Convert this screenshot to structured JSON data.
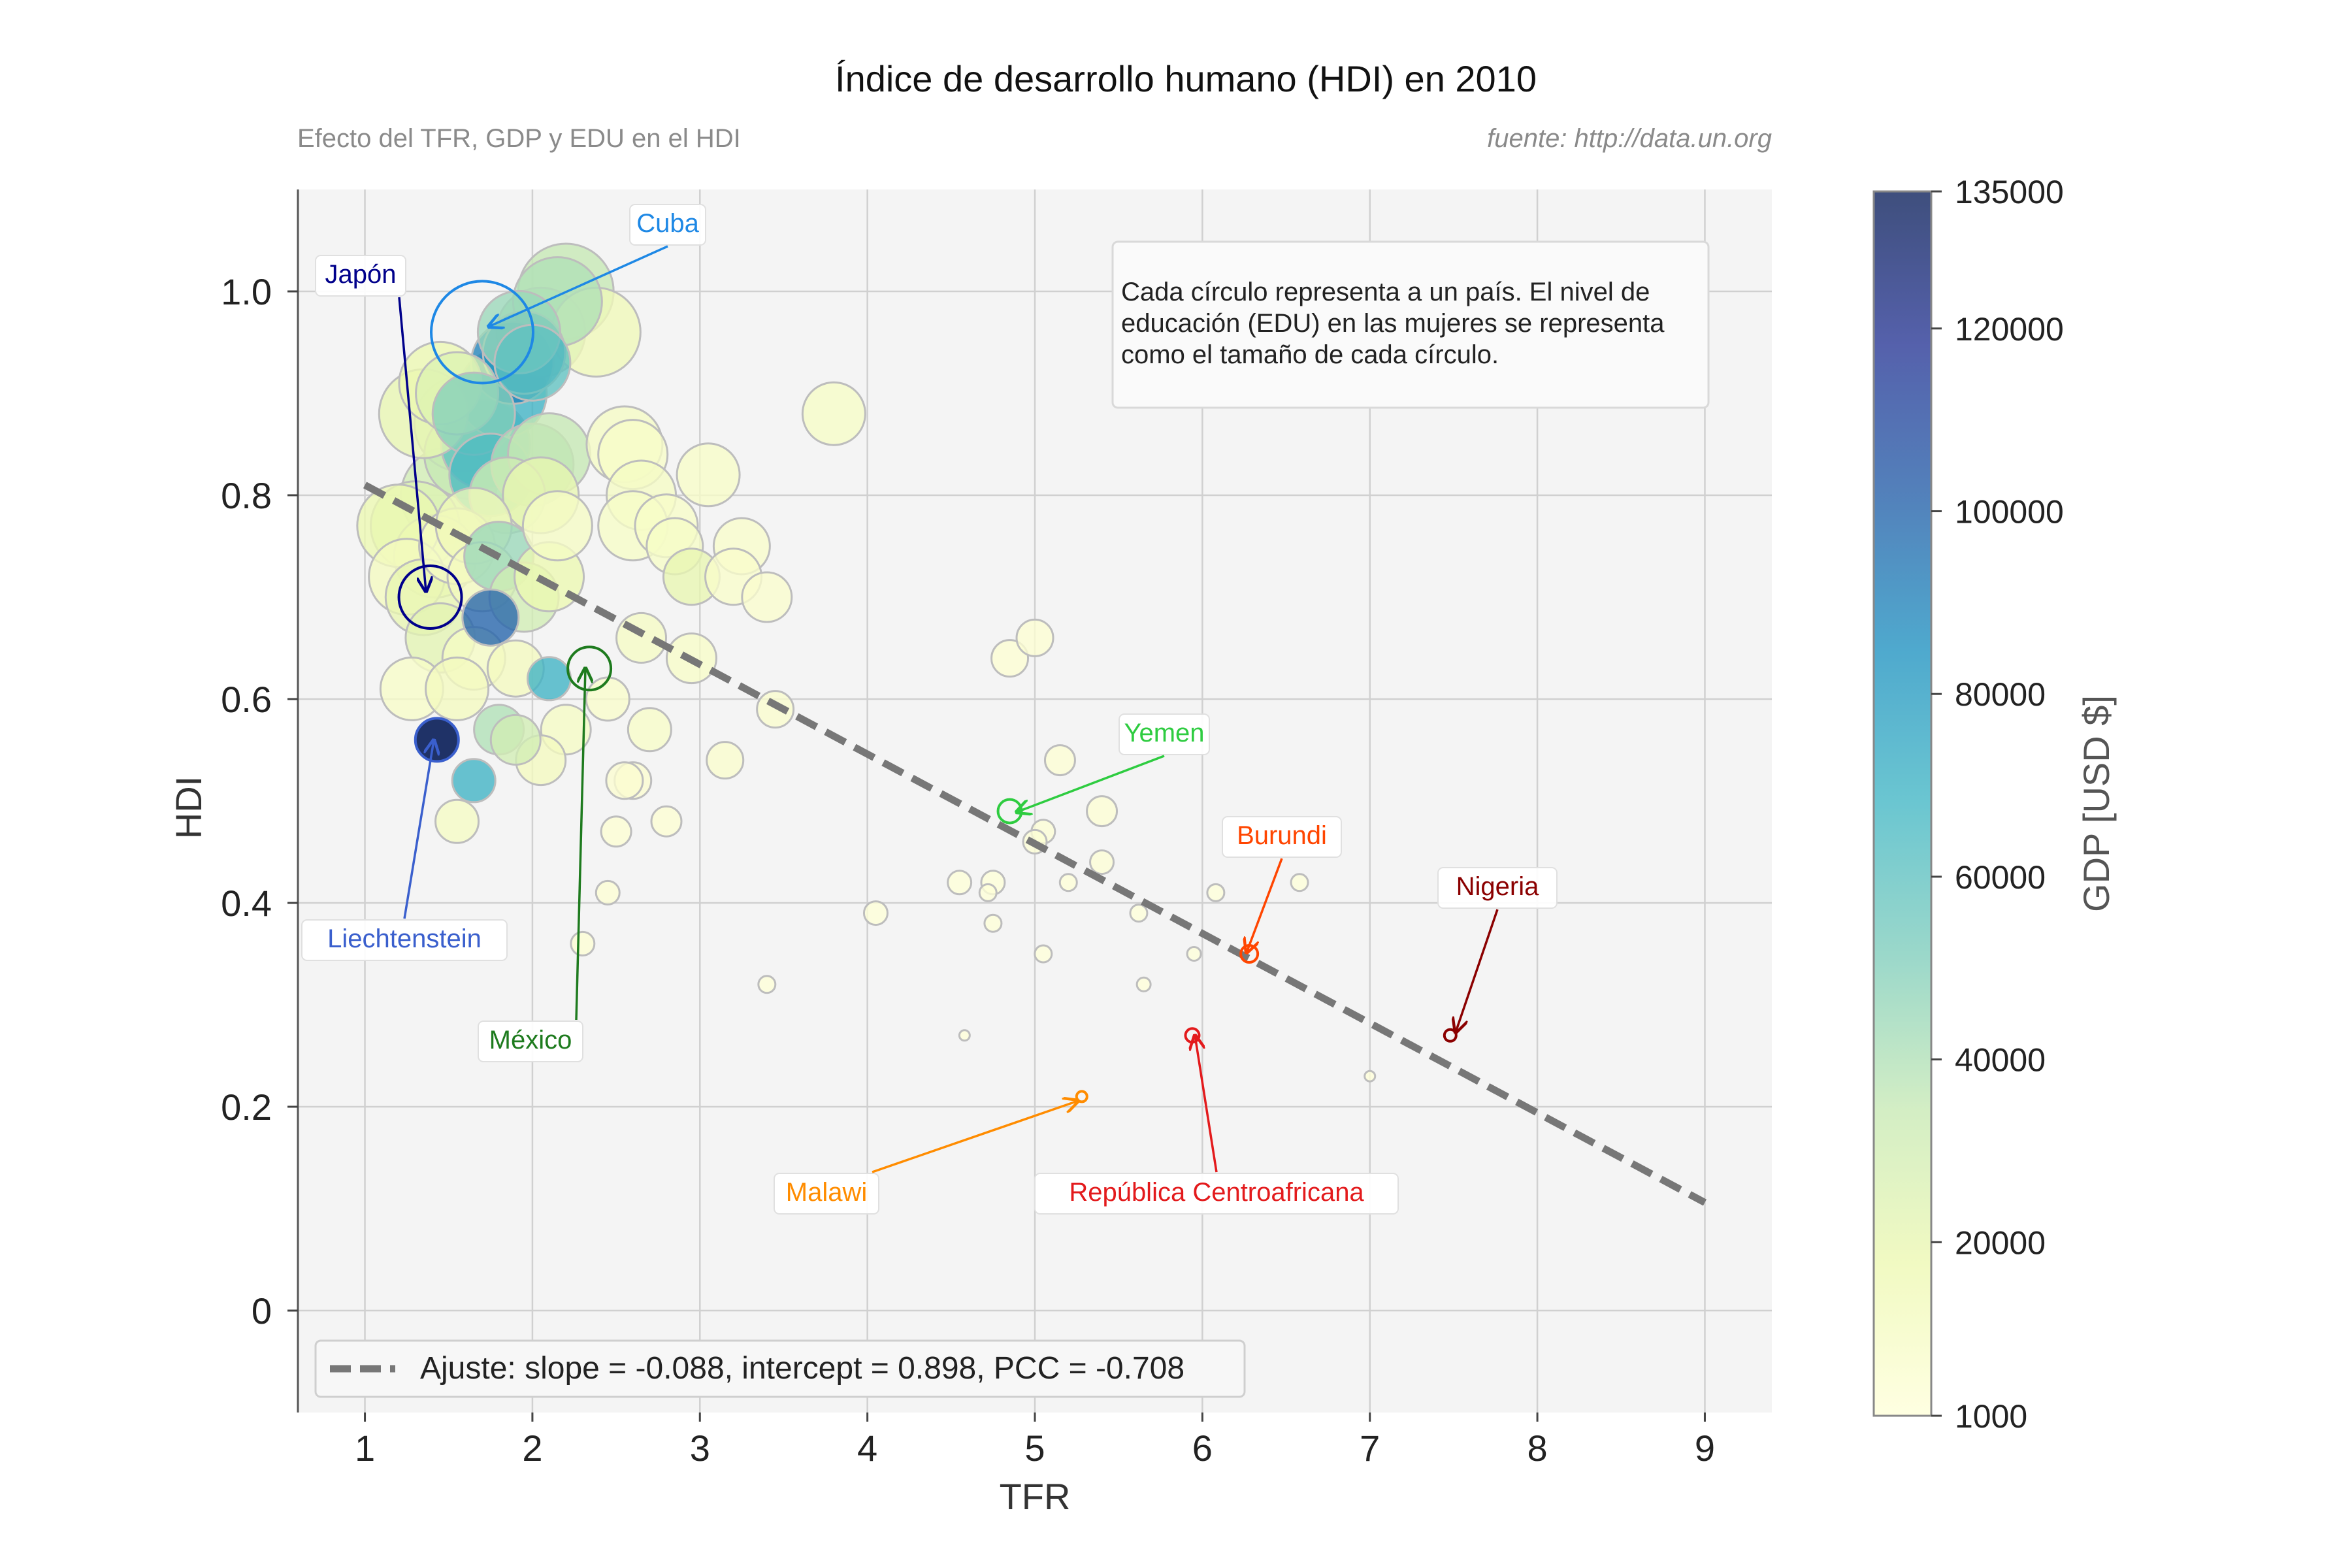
{
  "chart_data": {
    "type": "scatter",
    "title": "Índice de desarrollo humano (HDI) en 2010",
    "subtitle_left": "Efecto del TFR, GDP y EDU en el HDI",
    "subtitle_right": "fuente: http://data.un.org",
    "xlabel": "TFR",
    "ylabel": "HDI",
    "xlim": [
      0.6,
      9.4
    ],
    "ylim": [
      -0.1,
      1.1
    ],
    "xticks": [
      1,
      2,
      3,
      4,
      5,
      6,
      7,
      8,
      9
    ],
    "xtick_labels": [
      "1",
      "2",
      "3",
      "4",
      "5",
      "6",
      "7",
      "8",
      "9"
    ],
    "yticks": [
      0,
      0.2,
      0.4,
      0.6,
      0.8,
      1.0
    ],
    "ytick_labels": [
      "0",
      "0.2",
      "0.4",
      "0.6",
      "0.8",
      "1.0"
    ],
    "grid": true,
    "colorbar": {
      "label": "GDP [USD $]",
      "min": 1000,
      "max": 135000,
      "ticks": [
        1000,
        20000,
        40000,
        60000,
        80000,
        100000,
        120000,
        135000
      ],
      "tick_labels": [
        "1000",
        "20000",
        "40000",
        "60000",
        "80000",
        "100000",
        "120000",
        "135000"
      ],
      "colors": [
        "#ffffd9",
        "#edf8b1",
        "#c7e9b4",
        "#7fcdbb",
        "#41b6c4",
        "#1d91c0",
        "#225ea8",
        "#253494",
        "#081d58"
      ]
    },
    "fit": {
      "slope": -0.088,
      "intercept": 0.898,
      "x_range": [
        1,
        9
      ],
      "color": "#777777"
    },
    "legend": {
      "label": "Ajuste: slope = -0.088, intercept = 0.898, PCC = -0.708",
      "position": "lower-left"
    },
    "note": "Cada círculo representa a un país. El nivel de educación (EDU) en las mujeres se representa como el tamaño de cada círculo.",
    "points": [
      {
        "x": 1.3,
        "y": 0.77,
        "edu": 13,
        "gdp": 25000
      },
      {
        "x": 1.42,
        "y": 0.74,
        "edu": 12,
        "gdp": 15000
      },
      {
        "x": 1.5,
        "y": 0.8,
        "edu": 14,
        "gdp": 30000
      },
      {
        "x": 1.62,
        "y": 0.84,
        "edu": 13,
        "gdp": 35000
      },
      {
        "x": 1.58,
        "y": 0.87,
        "edu": 14,
        "gdp": 28000
      },
      {
        "x": 1.72,
        "y": 0.85,
        "edu": 13,
        "gdp": 60000
      },
      {
        "x": 1.82,
        "y": 0.9,
        "edu": 13,
        "gdp": 70000
      },
      {
        "x": 1.88,
        "y": 0.93,
        "edu": 12,
        "gdp": 90000
      },
      {
        "x": 1.95,
        "y": 0.94,
        "edu": 12,
        "gdp": 80000
      },
      {
        "x": 2.0,
        "y": 0.93,
        "edu": 11,
        "gdp": 60000
      },
      {
        "x": 2.05,
        "y": 0.96,
        "edu": 13,
        "gdp": 40000
      },
      {
        "x": 2.2,
        "y": 1.0,
        "edu": 14,
        "gdp": 35000
      },
      {
        "x": 2.38,
        "y": 0.96,
        "edu": 13,
        "gdp": 15000
      },
      {
        "x": 2.15,
        "y": 0.99,
        "edu": 13,
        "gdp": 40000
      },
      {
        "x": 1.92,
        "y": 0.96,
        "edu": 12,
        "gdp": 45000
      },
      {
        "x": 1.35,
        "y": 0.88,
        "edu": 13,
        "gdp": 20000
      },
      {
        "x": 1.45,
        "y": 0.91,
        "edu": 12,
        "gdp": 18000
      },
      {
        "x": 1.55,
        "y": 0.9,
        "edu": 12,
        "gdp": 25000
      },
      {
        "x": 1.65,
        "y": 0.88,
        "edu": 12,
        "gdp": 50000
      },
      {
        "x": 1.75,
        "y": 0.82,
        "edu": 12,
        "gdp": 65000
      },
      {
        "x": 1.85,
        "y": 0.8,
        "edu": 11,
        "gdp": 30000
      },
      {
        "x": 2.0,
        "y": 0.83,
        "edu": 12,
        "gdp": 40000
      },
      {
        "x": 2.1,
        "y": 0.84,
        "edu": 12,
        "gdp": 35000
      },
      {
        "x": 2.05,
        "y": 0.8,
        "edu": 11,
        "gdp": 20000
      },
      {
        "x": 1.2,
        "y": 0.77,
        "edu": 12,
        "gdp": 18000
      },
      {
        "x": 1.25,
        "y": 0.72,
        "edu": 11,
        "gdp": 12000
      },
      {
        "x": 1.35,
        "y": 0.7,
        "edu": 11,
        "gdp": 20000
      },
      {
        "x": 1.45,
        "y": 0.66,
        "edu": 10,
        "gdp": 22000
      },
      {
        "x": 1.55,
        "y": 0.75,
        "edu": 11,
        "gdp": 10000
      },
      {
        "x": 1.65,
        "y": 0.77,
        "edu": 11,
        "gdp": 15000
      },
      {
        "x": 1.7,
        "y": 0.72,
        "edu": 10,
        "gdp": 12000
      },
      {
        "x": 1.75,
        "y": 0.68,
        "edu": 8,
        "gdp": 100000
      },
      {
        "x": 1.8,
        "y": 0.74,
        "edu": 10,
        "gdp": 45000
      },
      {
        "x": 1.95,
        "y": 0.7,
        "edu": 10,
        "gdp": 30000
      },
      {
        "x": 2.1,
        "y": 0.72,
        "edu": 10,
        "gdp": 18000
      },
      {
        "x": 2.15,
        "y": 0.77,
        "edu": 10,
        "gdp": 10000
      },
      {
        "x": 1.65,
        "y": 0.64,
        "edu": 9,
        "gdp": 10000
      },
      {
        "x": 1.9,
        "y": 0.63,
        "edu": 8,
        "gdp": 12000
      },
      {
        "x": 2.1,
        "y": 0.62,
        "edu": 6,
        "gdp": 70000
      },
      {
        "x": 1.28,
        "y": 0.61,
        "edu": 9,
        "gdp": 8000
      },
      {
        "x": 1.55,
        "y": 0.61,
        "edu": 9,
        "gdp": 12000
      },
      {
        "x": 2.2,
        "y": 0.57,
        "edu": 7,
        "gdp": 10000
      },
      {
        "x": 2.05,
        "y": 0.54,
        "edu": 7,
        "gdp": 12000
      },
      {
        "x": 1.8,
        "y": 0.57,
        "edu": 7,
        "gdp": 40000
      },
      {
        "x": 1.9,
        "y": 0.56,
        "edu": 7,
        "gdp": 30000
      },
      {
        "x": 1.55,
        "y": 0.48,
        "edu": 6,
        "gdp": 10000
      },
      {
        "x": 1.65,
        "y": 0.52,
        "edu": 6,
        "gdp": 70000
      },
      {
        "x": 2.55,
        "y": 0.85,
        "edu": 11,
        "gdp": 10000
      },
      {
        "x": 2.6,
        "y": 0.84,
        "edu": 10,
        "gdp": 8000
      },
      {
        "x": 2.65,
        "y": 0.8,
        "edu": 10,
        "gdp": 10000
      },
      {
        "x": 2.6,
        "y": 0.77,
        "edu": 10,
        "gdp": 9000
      },
      {
        "x": 2.8,
        "y": 0.77,
        "edu": 9,
        "gdp": 8000
      },
      {
        "x": 2.85,
        "y": 0.75,
        "edu": 8,
        "gdp": 9000
      },
      {
        "x": 2.95,
        "y": 0.72,
        "edu": 8,
        "gdp": 20000
      },
      {
        "x": 3.05,
        "y": 0.82,
        "edu": 9,
        "gdp": 8000
      },
      {
        "x": 3.25,
        "y": 0.75,
        "edu": 8,
        "gdp": 7000
      },
      {
        "x": 3.2,
        "y": 0.72,
        "edu": 8,
        "gdp": 7000
      },
      {
        "x": 3.4,
        "y": 0.7,
        "edu": 7,
        "gdp": 6000
      },
      {
        "x": 3.8,
        "y": 0.88,
        "edu": 9,
        "gdp": 9000
      },
      {
        "x": 2.65,
        "y": 0.66,
        "edu": 7,
        "gdp": 10000
      },
      {
        "x": 2.95,
        "y": 0.64,
        "edu": 7,
        "gdp": 8000
      },
      {
        "x": 2.45,
        "y": 0.6,
        "edu": 6,
        "gdp": 7000
      },
      {
        "x": 2.7,
        "y": 0.57,
        "edu": 6,
        "gdp": 8000
      },
      {
        "x": 3.45,
        "y": 0.59,
        "edu": 5,
        "gdp": 6000
      },
      {
        "x": 3.15,
        "y": 0.54,
        "edu": 5,
        "gdp": 6000
      },
      {
        "x": 2.6,
        "y": 0.52,
        "edu": 5,
        "gdp": 5000
      },
      {
        "x": 2.55,
        "y": 0.52,
        "edu": 5,
        "gdp": 5000
      },
      {
        "x": 2.5,
        "y": 0.47,
        "edu": 4,
        "gdp": 4000
      },
      {
        "x": 2.8,
        "y": 0.48,
        "edu": 4,
        "gdp": 4000
      },
      {
        "x": 2.45,
        "y": 0.41,
        "edu": 3,
        "gdp": 3000
      },
      {
        "x": 2.3,
        "y": 0.36,
        "edu": 3,
        "gdp": 3000
      },
      {
        "x": 3.4,
        "y": 0.32,
        "edu": 2,
        "gdp": 2000
      },
      {
        "x": 4.05,
        "y": 0.39,
        "edu": 3,
        "gdp": 2000
      },
      {
        "x": 4.85,
        "y": 0.64,
        "edu": 5,
        "gdp": 4000
      },
      {
        "x": 5.0,
        "y": 0.66,
        "edu": 5,
        "gdp": 4000
      },
      {
        "x": 5.15,
        "y": 0.54,
        "edu": 4,
        "gdp": 3000
      },
      {
        "x": 5.4,
        "y": 0.49,
        "edu": 4,
        "gdp": 3000
      },
      {
        "x": 5.05,
        "y": 0.47,
        "edu": 3,
        "gdp": 2500
      },
      {
        "x": 5.0,
        "y": 0.46,
        "edu": 3,
        "gdp": 2500
      },
      {
        "x": 5.4,
        "y": 0.44,
        "edu": 3,
        "gdp": 2500
      },
      {
        "x": 4.55,
        "y": 0.42,
        "edu": 3,
        "gdp": 2000
      },
      {
        "x": 4.75,
        "y": 0.42,
        "edu": 3,
        "gdp": 2000
      },
      {
        "x": 4.72,
        "y": 0.41,
        "edu": 2,
        "gdp": 2000
      },
      {
        "x": 5.2,
        "y": 0.42,
        "edu": 2,
        "gdp": 2000
      },
      {
        "x": 4.75,
        "y": 0.38,
        "edu": 2,
        "gdp": 2000
      },
      {
        "x": 5.05,
        "y": 0.35,
        "edu": 2,
        "gdp": 1500
      },
      {
        "x": 5.62,
        "y": 0.39,
        "edu": 2,
        "gdp": 1500
      },
      {
        "x": 6.08,
        "y": 0.41,
        "edu": 2,
        "gdp": 1500
      },
      {
        "x": 6.58,
        "y": 0.42,
        "edu": 2,
        "gdp": 1500
      },
      {
        "x": 5.95,
        "y": 0.35,
        "edu": 1.5,
        "gdp": 1500
      },
      {
        "x": 5.65,
        "y": 0.32,
        "edu": 1.5,
        "gdp": 1200
      },
      {
        "x": 4.58,
        "y": 0.27,
        "edu": 1,
        "gdp": 1200
      },
      {
        "x": 7.0,
        "y": 0.23,
        "edu": 1,
        "gdp": 1100
      }
    ],
    "highlights": [
      {
        "name": "Cuba",
        "x": 1.7,
        "y": 0.96,
        "edu": 15,
        "color": "#1e88e5"
      },
      {
        "name": "Japón",
        "x": 1.39,
        "y": 0.7,
        "edu": 9,
        "color": "#00008b"
      },
      {
        "name": "Liechtenstein",
        "x": 1.43,
        "y": 0.56,
        "edu": 6,
        "gdp": 135000,
        "color": "#3a5fcd"
      },
      {
        "name": "México",
        "x": 2.34,
        "y": 0.63,
        "edu": 6,
        "color": "#1e7b1e"
      },
      {
        "name": "Yemen",
        "x": 4.85,
        "y": 0.49,
        "edu": 3,
        "color": "#2ecc40"
      },
      {
        "name": "Burundi",
        "x": 6.28,
        "y": 0.35,
        "edu": 2,
        "color": "#ff4500"
      },
      {
        "name": "Nigeria",
        "x": 7.48,
        "y": 0.27,
        "edu": 1.2,
        "color": "#8b0000"
      },
      {
        "name": "Malawi",
        "x": 5.28,
        "y": 0.21,
        "edu": 1,
        "color": "#ff8c00"
      },
      {
        "name": "República Centroafricana",
        "x": 5.94,
        "y": 0.27,
        "edu": 1.5,
        "color": "#e31a1c"
      }
    ]
  }
}
